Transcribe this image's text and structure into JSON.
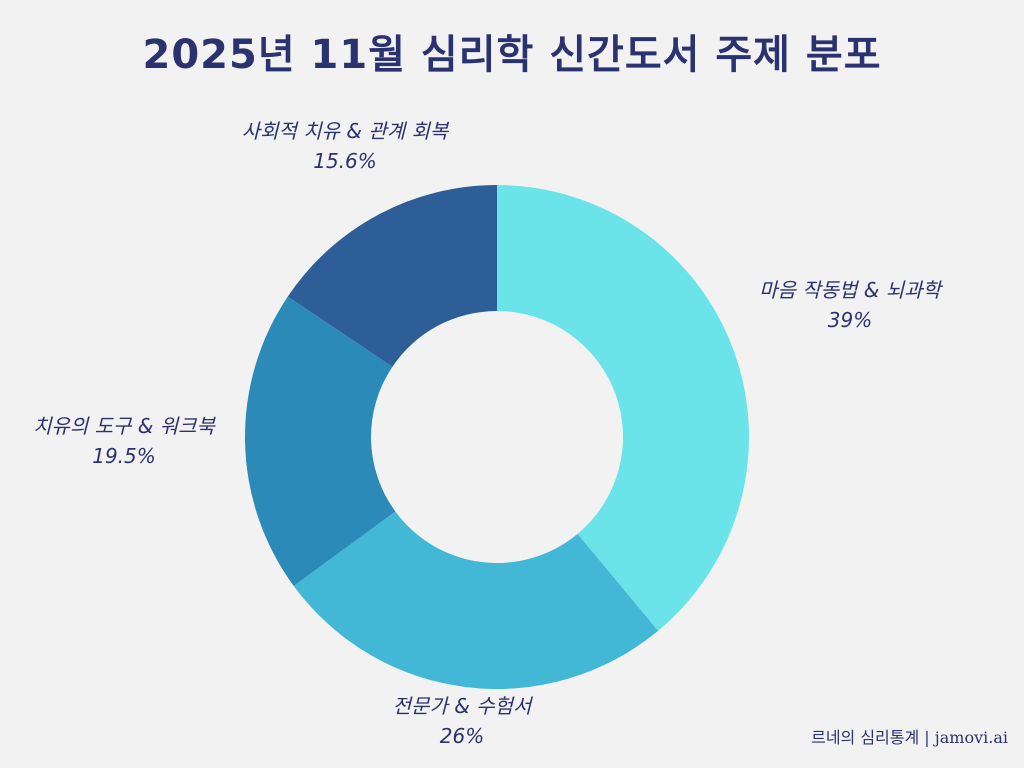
{
  "title": "2025년 11월 심리학 신간도서 주제 분포",
  "footer": "르네의 심리통계 | jamovi.ai",
  "chart_data": {
    "type": "pie",
    "style": "donut",
    "title": "2025년 11월 심리학 신간도서 주제 분포",
    "start_angle": "12 o'clock",
    "direction": "clockwise",
    "slices": [
      {
        "label": "마음 작동법 & 뇌과학",
        "value": 39,
        "display": "39%",
        "color": "#6ae4e8"
      },
      {
        "label": "전문가 & 수험서",
        "value": 26,
        "display": "26%",
        "color": "#43b8d6"
      },
      {
        "label": "치유의 도구 & 워크북",
        "value": 19.5,
        "display": "19.5%",
        "color": "#2b8ab8"
      },
      {
        "label": "사회적 치유 & 관계 회복",
        "value": 15.6,
        "display": "15.6%",
        "color": "#2d5e98"
      }
    ]
  }
}
